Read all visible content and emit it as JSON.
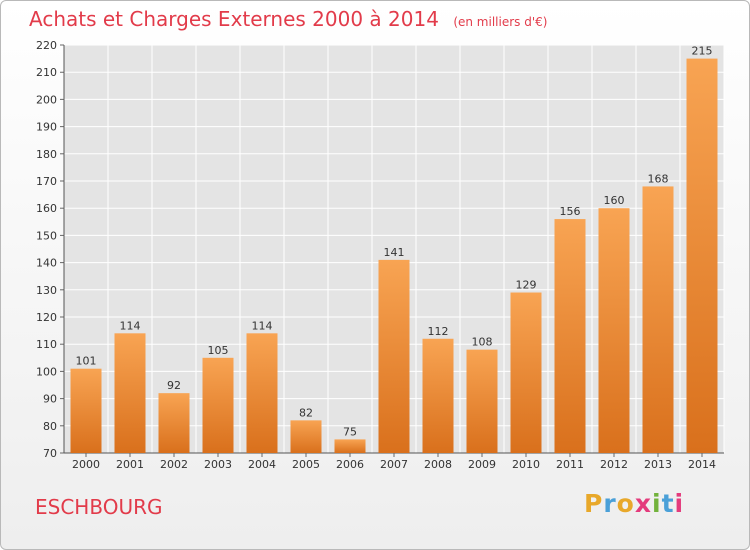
{
  "header": {
    "title": "Achats et Charges Externes 2000 à 2014",
    "subtitle": "(en milliers d'€)"
  },
  "footer": {
    "commune": "ESCHBOURG",
    "brand": "Proxiti"
  },
  "colors": {
    "title": "#e23b4a",
    "bar_top": "#f8a453",
    "bar_bottom": "#d9701c",
    "plot_bg": "#e4e4e4",
    "grid": "#ffffff"
  },
  "chart_data": {
    "type": "bar",
    "categories": [
      "2000",
      "2001",
      "2002",
      "2003",
      "2004",
      "2005",
      "2006",
      "2007",
      "2008",
      "2009",
      "2010",
      "2011",
      "2012",
      "2013",
      "2014"
    ],
    "values": [
      101,
      114,
      92,
      105,
      114,
      82,
      75,
      141,
      112,
      108,
      129,
      156,
      160,
      168,
      215
    ],
    "title": "Achats et Charges Externes 2000 à 2014",
    "subtitle": "(en milliers d'€)",
    "xlabel": "",
    "ylabel": "",
    "ylim": [
      70,
      220
    ],
    "yticks": [
      70,
      80,
      90,
      100,
      110,
      120,
      130,
      140,
      150,
      160,
      170,
      180,
      190,
      200,
      210,
      220
    ],
    "grid": true,
    "data_labels": true
  }
}
